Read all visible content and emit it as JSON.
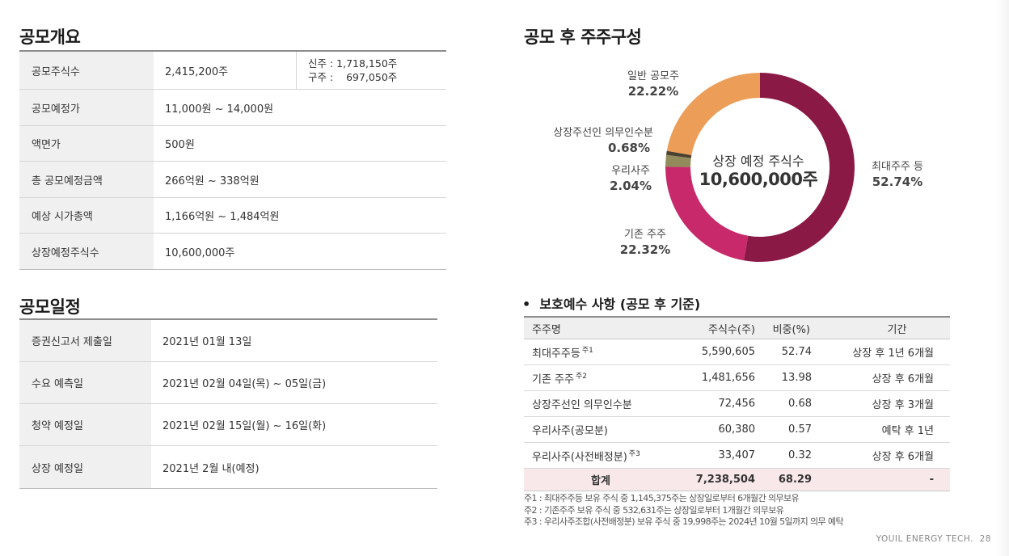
{
  "offering": {
    "title": "공모개요",
    "rows": [
      {
        "label": "공모주식수",
        "value": "2,415,200주",
        "sub": [
          "신주 : 1,718,150주",
          "구주 :    697,050주"
        ]
      },
      {
        "label": "공모예정가",
        "value": "11,000원 ~ 14,000원"
      },
      {
        "label": "액면가",
        "value": "500원"
      },
      {
        "label": "총 공모예정금액",
        "value": "266억원 ~ 338억원"
      },
      {
        "label": "예상 시가총액",
        "value": "1,166억원 ~ 1,484억원"
      },
      {
        "label": "상장예정주식수",
        "value": "10,600,000주"
      }
    ]
  },
  "schedule": {
    "title": "공모일정",
    "rows": [
      {
        "label": "증권신고서 제출일",
        "value": "2021년 01월 13일"
      },
      {
        "label": "수요 예측일",
        "value": "2021년 02월 04일(목) ~ 05일(금)"
      },
      {
        "label": "청약 예정일",
        "value": "2021년 02월 15일(월) ~ 16일(화)"
      },
      {
        "label": "상장 예정일",
        "value": "2021년 2월 내(예정)"
      }
    ]
  },
  "shareholders": {
    "title": "공모 후 주주구성",
    "center_label": "상장 예정 주식수",
    "center_value": "10,600,000주"
  },
  "chart_data": {
    "type": "pie",
    "title": "공모 후 주주구성",
    "categories": [
      "최대주주 등",
      "기존 주주",
      "우리사주",
      "상장주선인 의무인수분",
      "일반 공모주"
    ],
    "values": [
      52.74,
      22.32,
      2.04,
      0.68,
      22.22
    ],
    "labels": [
      "52.74%",
      "22.32%",
      "2.04%",
      "0.68%",
      "22.22%"
    ],
    "colors": [
      "#8a1a45",
      "#c8296a",
      "#938b5c",
      "#4a4030",
      "#ec9e58"
    ]
  },
  "lockup": {
    "title": "보호예수 사항 (공모 후 기준)",
    "headers": [
      "주주명",
      "주식수(주)",
      "비중(%)",
      "기간"
    ],
    "rows": [
      {
        "name": "최대주주등",
        "note": "주1",
        "shares": "5,590,605",
        "ratio": "52.74",
        "period": "상장 후 1년 6개월"
      },
      {
        "name": "기존 주주",
        "note": "주2",
        "shares": "1,481,656",
        "ratio": "13.98",
        "period": "상장 후 6개월"
      },
      {
        "name": "상장주선인 의무인수분",
        "note": "",
        "shares": "72,456",
        "ratio": "0.68",
        "period": "상장 후 3개월"
      },
      {
        "name": "우리사주(공모분)",
        "note": "",
        "shares": "60,380",
        "ratio": "0.57",
        "period": "예탁 후 1년"
      },
      {
        "name": "우리사주(사전배정분)",
        "note": "주3",
        "shares": "33,407",
        "ratio": "0.32",
        "period": "상장 후 6개월"
      }
    ],
    "total": {
      "name": "합계",
      "shares": "7,238,504",
      "ratio": "68.29",
      "period": "-"
    }
  },
  "notes": [
    "주1 : 최대주주등  보유 주식 중 1,145,375주는 상장일로부터 6개월간 의무보유",
    "주2 : 기존주주 보유 주식 중 532,631주는 상장일로부터 1개월간 의무보유",
    "주3 : 우리사주조합(사전배정분) 보유 주식 중 19,998주는 2024년 10월 5일까지 의무 예탁"
  ],
  "footer": {
    "company": "YOUIL ENERGY TECH.",
    "page": "28"
  }
}
